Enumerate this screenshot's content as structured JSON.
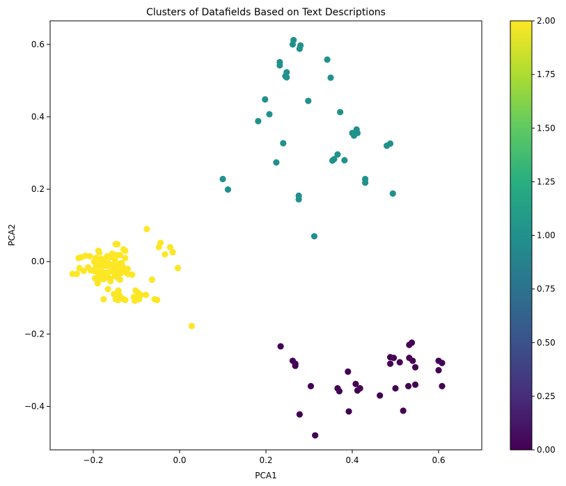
{
  "chart_data": {
    "type": "scatter",
    "title": "Clusters of Datafields Based on Text Descriptions",
    "xlabel": "PCA1",
    "ylabel": "PCA2",
    "xlim": [
      -0.3,
      0.7
    ],
    "ylim": [
      -0.52,
      0.665
    ],
    "x_ticks": [
      -0.2,
      0.0,
      0.2,
      0.4,
      0.6
    ],
    "x_tick_labels": [
      "−0.2",
      "0.0",
      "0.2",
      "0.4",
      "0.6"
    ],
    "y_ticks": [
      -0.4,
      -0.2,
      0.0,
      0.2,
      0.4,
      0.6
    ],
    "y_tick_labels": [
      "−0.4",
      "−0.2",
      "0.0",
      "0.2",
      "0.4",
      "0.6"
    ],
    "grid": false,
    "colorbar": {
      "colormap": "viridis",
      "range": [
        0.0,
        2.0
      ],
      "ticks": [
        0.0,
        0.25,
        0.5,
        0.75,
        1.0,
        1.25,
        1.5,
        1.75,
        2.0
      ],
      "tick_labels": [
        "0.00",
        "0.25",
        "0.50",
        "0.75",
        "1.00",
        "1.25",
        "1.50",
        "1.75",
        "2.00"
      ]
    },
    "cluster_colors": {
      "0": "#440154",
      "1": "#21918c",
      "2": "#fde725"
    },
    "points": [
      {
        "c": 1,
        "xy": [
          [
            0.264,
            0.612
          ],
          [
            0.262,
            0.6
          ],
          [
            0.28,
            0.597
          ],
          [
            0.278,
            0.588
          ],
          [
            0.342,
            0.558
          ],
          [
            0.232,
            0.551
          ],
          [
            0.232,
            0.542
          ],
          [
            0.248,
            0.523
          ],
          [
            0.245,
            0.512
          ],
          [
            0.248,
            0.509
          ],
          [
            0.35,
            0.508
          ],
          [
            0.198,
            0.448
          ],
          [
            0.298,
            0.444
          ],
          [
            0.372,
            0.413
          ],
          [
            0.208,
            0.407
          ],
          [
            0.182,
            0.388
          ],
          [
            0.41,
            0.365
          ],
          [
            0.4,
            0.355
          ],
          [
            0.412,
            0.355
          ],
          [
            0.404,
            0.348
          ],
          [
            0.488,
            0.326
          ],
          [
            0.48,
            0.32
          ],
          [
            0.24,
            0.327
          ],
          [
            0.366,
            0.296
          ],
          [
            0.358,
            0.283
          ],
          [
            0.354,
            0.279
          ],
          [
            0.382,
            0.28
          ],
          [
            0.224,
            0.274
          ],
          [
            0.43,
            0.228
          ],
          [
            0.43,
            0.218
          ],
          [
            0.1,
            0.228
          ],
          [
            0.112,
            0.199
          ],
          [
            0.494,
            0.188
          ],
          [
            0.276,
            0.182
          ],
          [
            0.276,
            0.172
          ],
          [
            0.312,
            0.07
          ]
        ]
      },
      {
        "c": 0,
        "xy": [
          [
            0.234,
            -0.234
          ],
          [
            0.538,
            -0.224
          ],
          [
            0.532,
            -0.23
          ],
          [
            0.488,
            -0.264
          ],
          [
            0.496,
            -0.266
          ],
          [
            0.532,
            -0.266
          ],
          [
            0.54,
            -0.274
          ],
          [
            0.6,
            -0.274
          ],
          [
            0.608,
            -0.28
          ],
          [
            0.262,
            -0.274
          ],
          [
            0.268,
            -0.282
          ],
          [
            0.268,
            -0.288
          ],
          [
            0.488,
            -0.282
          ],
          [
            0.51,
            -0.278
          ],
          [
            0.546,
            -0.292
          ],
          [
            0.6,
            -0.3
          ],
          [
            0.39,
            -0.304
          ],
          [
            0.304,
            -0.344
          ],
          [
            0.408,
            -0.338
          ],
          [
            0.53,
            -0.344
          ],
          [
            0.546,
            -0.34
          ],
          [
            0.608,
            -0.344
          ],
          [
            0.366,
            -0.35
          ],
          [
            0.37,
            -0.358
          ],
          [
            0.418,
            -0.35
          ],
          [
            0.412,
            -0.356
          ],
          [
            0.5,
            -0.35
          ],
          [
            0.464,
            -0.37
          ],
          [
            0.392,
            -0.414
          ],
          [
            0.518,
            -0.412
          ],
          [
            0.278,
            -0.422
          ],
          [
            0.314,
            -0.48
          ]
        ]
      },
      {
        "c": 2,
        "xy": [
          [
            -0.076,
            0.09
          ],
          [
            -0.044,
            0.052
          ],
          [
            -0.048,
            0.04
          ],
          [
            -0.022,
            0.04
          ],
          [
            -0.016,
            0.026
          ],
          [
            -0.034,
            0.02
          ],
          [
            -0.004,
            -0.018
          ],
          [
            -0.148,
            0.048
          ],
          [
            -0.144,
            0.048
          ],
          [
            -0.13,
            0.034
          ],
          [
            -0.126,
            0.03
          ],
          [
            -0.188,
            0.03
          ],
          [
            -0.186,
            0.025
          ],
          [
            -0.218,
            0.016
          ],
          [
            -0.208,
            0.015
          ],
          [
            -0.228,
            0.012
          ],
          [
            -0.234,
            0.01
          ],
          [
            -0.156,
            0.022
          ],
          [
            -0.16,
            0.012
          ],
          [
            -0.146,
            0.018
          ],
          [
            -0.138,
            0.018
          ],
          [
            -0.168,
            0.015
          ],
          [
            -0.194,
            0.01
          ],
          [
            -0.182,
            0.008
          ],
          [
            -0.174,
            0.006
          ],
          [
            -0.15,
            0.006
          ],
          [
            -0.126,
            0.01
          ],
          [
            -0.198,
            0.0
          ],
          [
            -0.188,
            -0.005
          ],
          [
            -0.178,
            -0.002
          ],
          [
            -0.166,
            -0.004
          ],
          [
            -0.156,
            -0.008
          ],
          [
            -0.146,
            -0.004
          ],
          [
            -0.14,
            -0.006
          ],
          [
            -0.134,
            -0.004
          ],
          [
            -0.194,
            -0.014
          ],
          [
            -0.182,
            -0.016
          ],
          [
            -0.17,
            -0.012
          ],
          [
            -0.16,
            -0.014
          ],
          [
            -0.15,
            -0.018
          ],
          [
            -0.14,
            -0.02
          ],
          [
            -0.13,
            -0.016
          ],
          [
            -0.12,
            -0.02
          ],
          [
            -0.232,
            -0.018
          ],
          [
            -0.222,
            -0.026
          ],
          [
            -0.212,
            -0.016
          ],
          [
            -0.206,
            -0.024
          ],
          [
            -0.198,
            -0.026
          ],
          [
            -0.188,
            -0.03
          ],
          [
            -0.176,
            -0.03
          ],
          [
            -0.166,
            -0.03
          ],
          [
            -0.154,
            -0.028
          ],
          [
            -0.146,
            -0.034
          ],
          [
            -0.136,
            -0.032
          ],
          [
            -0.128,
            -0.028
          ],
          [
            -0.248,
            -0.034
          ],
          [
            -0.238,
            -0.034
          ],
          [
            -0.188,
            -0.036
          ],
          [
            -0.18,
            -0.04
          ],
          [
            -0.17,
            -0.044
          ],
          [
            -0.162,
            -0.046
          ],
          [
            -0.15,
            -0.04
          ],
          [
            -0.142,
            -0.046
          ],
          [
            -0.12,
            -0.034
          ],
          [
            -0.11,
            -0.036
          ],
          [
            -0.196,
            -0.046
          ],
          [
            -0.186,
            -0.05
          ],
          [
            -0.176,
            -0.048
          ],
          [
            -0.16,
            -0.054
          ],
          [
            -0.138,
            -0.05
          ],
          [
            -0.064,
            -0.05
          ],
          [
            -0.19,
            -0.06
          ],
          [
            -0.166,
            -0.076
          ],
          [
            -0.142,
            -0.08
          ],
          [
            -0.102,
            -0.08
          ],
          [
            -0.096,
            -0.086
          ],
          [
            -0.09,
            -0.092
          ],
          [
            -0.078,
            -0.092
          ],
          [
            -0.152,
            -0.09
          ],
          [
            -0.14,
            -0.092
          ],
          [
            -0.146,
            -0.098
          ],
          [
            -0.132,
            -0.102
          ],
          [
            -0.106,
            -0.098
          ],
          [
            -0.1,
            -0.102
          ],
          [
            -0.094,
            -0.104
          ],
          [
            -0.176,
            -0.104
          ],
          [
            -0.148,
            -0.104
          ],
          [
            -0.142,
            -0.106
          ],
          [
            -0.126,
            -0.106
          ],
          [
            -0.104,
            -0.108
          ],
          [
            -0.058,
            -0.104
          ],
          [
            -0.052,
            -0.106
          ],
          [
            0.028,
            -0.178
          ]
        ]
      }
    ]
  }
}
